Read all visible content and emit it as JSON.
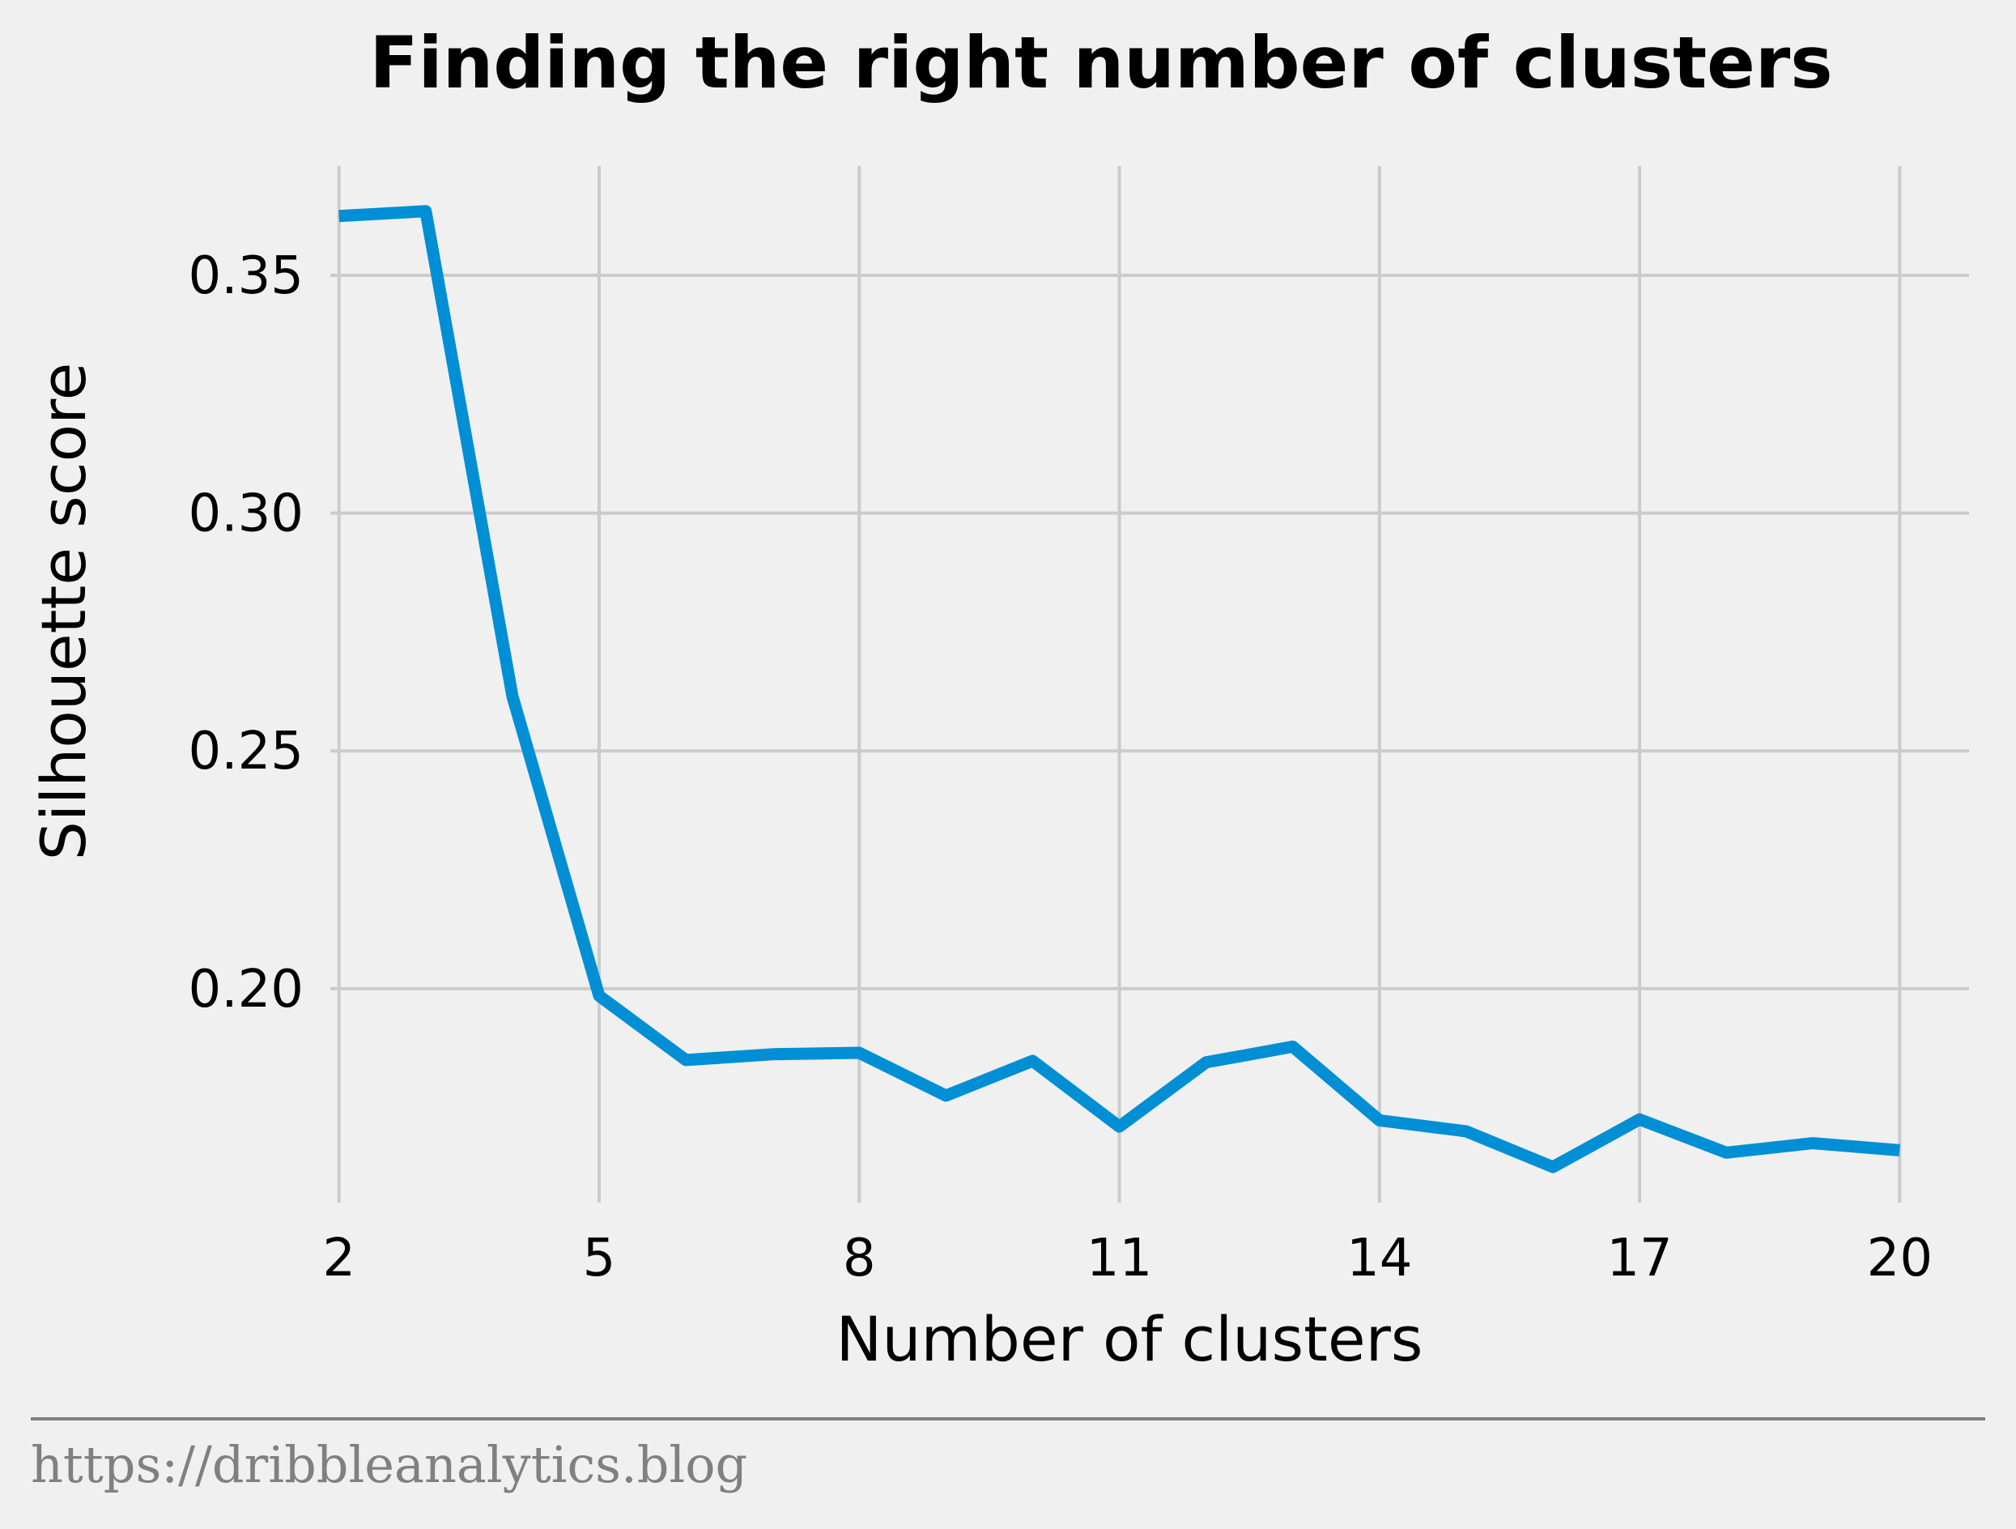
{
  "footer": {
    "text": "https://dribbleanalytics.blog"
  },
  "colors": {
    "background": "#f0f0f0",
    "series": "#008fd5",
    "grid": "#cbcbcb",
    "footer": "#808080"
  },
  "chart_data": {
    "type": "line",
    "title": "Finding the right number of clusters",
    "xlabel": "Number of clusters",
    "ylabel": "Silhouette score",
    "xlim": [
      1.9,
      20.8
    ],
    "ylim": [
      0.155,
      0.373
    ],
    "xticks": [
      2,
      5,
      8,
      11,
      14,
      17,
      20
    ],
    "yticks": [
      0.2,
      0.25,
      0.3,
      0.35
    ],
    "ytick_labels": [
      "0.20",
      "0.25",
      "0.30",
      "0.35"
    ],
    "grid": true,
    "series": [
      {
        "color": "#008fd5",
        "x": [
          2,
          3,
          4,
          5,
          6,
          7,
          8,
          9,
          10,
          11,
          12,
          13,
          14,
          15,
          16,
          17,
          18,
          19,
          20
        ],
        "y": [
          0.3625,
          0.3635,
          0.2615,
          0.1985,
          0.185,
          0.1862,
          0.1865,
          0.1775,
          0.1848,
          0.171,
          0.1845,
          0.1878,
          0.1723,
          0.17,
          0.1625,
          0.1725,
          0.1655,
          0.1675,
          0.166
        ]
      }
    ]
  }
}
